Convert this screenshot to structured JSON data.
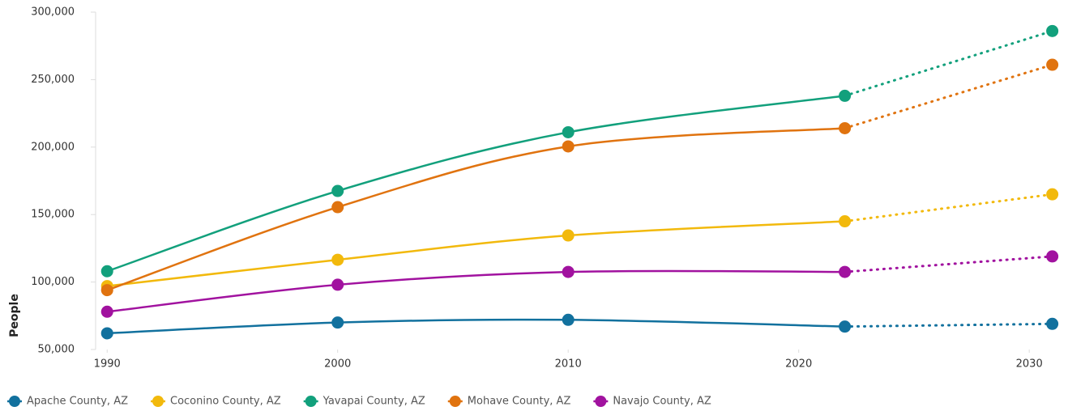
{
  "chart_data": {
    "type": "line",
    "y_label": "People",
    "x": [
      1990,
      2000,
      2010,
      2022,
      2031
    ],
    "xlim": [
      1989.5,
      2031.4
    ],
    "xticks": [
      1990,
      2000,
      2010,
      2020,
      2030
    ],
    "ylim": [
      50000,
      300000
    ],
    "yticks": [
      {
        "value": 50000,
        "label": "50,000"
      },
      {
        "value": 100000,
        "label": "100,000"
      },
      {
        "value": 150000,
        "label": "150,000"
      },
      {
        "value": 200000,
        "label": "200,000"
      },
      {
        "value": 250000,
        "label": "250,000"
      },
      {
        "value": 300000,
        "label": "300,000"
      }
    ],
    "dotted_from": 2022,
    "legend": "bottom-left",
    "series": [
      {
        "name": "Apache County, AZ",
        "color": "#12719e",
        "values": [
          62000,
          70000,
          72000,
          67000,
          69000
        ]
      },
      {
        "name": "Coconino County, AZ",
        "color": "#f2b90c",
        "values": [
          97000,
          116500,
          134500,
          145000,
          165000
        ]
      },
      {
        "name": "Yavapai County, AZ",
        "color": "#12a07c",
        "values": [
          108000,
          167500,
          211000,
          238000,
          286000
        ]
      },
      {
        "name": "Mohave County, AZ",
        "color": "#e0730f",
        "values": [
          94000,
          155500,
          200500,
          214000,
          261000
        ]
      },
      {
        "name": "Navajo County, AZ",
        "color": "#a1129f",
        "values": [
          78000,
          98000,
          107500,
          107500,
          119000
        ]
      }
    ]
  }
}
